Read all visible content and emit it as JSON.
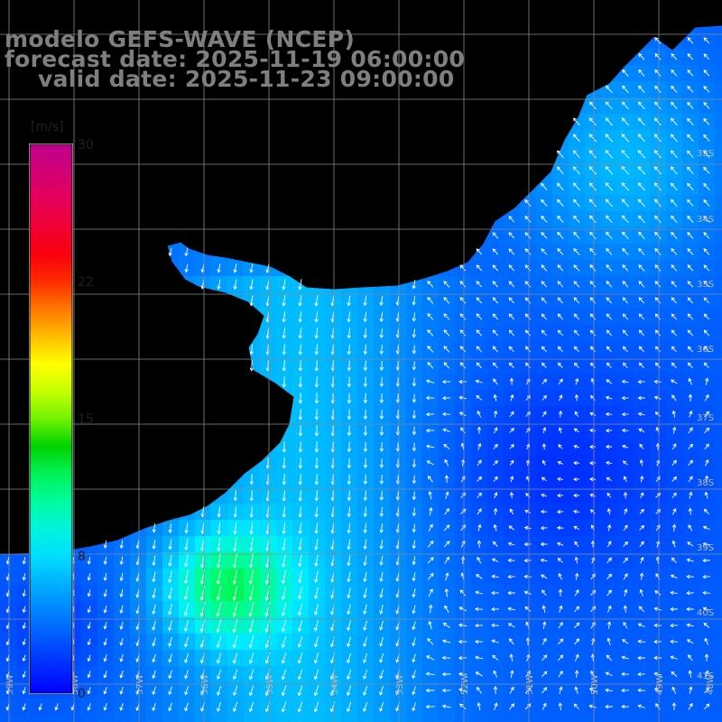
{
  "title": {
    "line1": "modelo GEFS-WAVE (NCEP)",
    "line2": "forecast date: 2025-11-19 06:00:00",
    "line3": "valid date: 2025-11-23 09:00:00"
  },
  "colorbar": {
    "unit": "[m/s]",
    "ticks": [
      {
        "label": "30",
        "value": 30
      },
      {
        "label": "22",
        "value": 22
      },
      {
        "label": "15",
        "value": 15
      },
      {
        "label": "8",
        "value": 8
      },
      {
        "label": "0",
        "value": 0
      }
    ],
    "min": 0,
    "max": 30
  },
  "map": {
    "field": "wind speed",
    "land_color": "#ffffff",
    "grid_color": "#8a8a8a",
    "coast_color": "#000000",
    "arrow_color": "#ffffff",
    "lat_labels": [
      "33S",
      "34S",
      "35S",
      "36S",
      "37S",
      "38S",
      "39S",
      "40S",
      "41S"
    ],
    "lon_labels": [
      "59W",
      "58W",
      "57W",
      "56W",
      "55W",
      "54W",
      "53W",
      "52W",
      "51W",
      "50W",
      "49W",
      "48W"
    ],
    "dominant_flow": "northwest-directed arrows over the north-east shelf, southward flow along the western coast",
    "max_wind_region": "green patch around 56W 40S, about 10 m/s"
  }
}
